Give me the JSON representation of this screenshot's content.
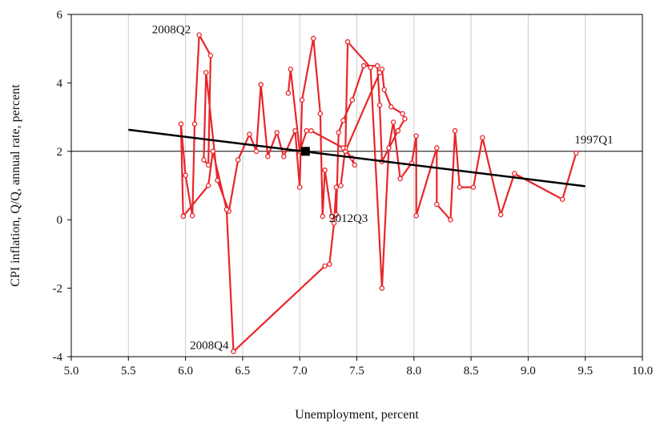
{
  "chart_data": {
    "type": "scatter",
    "title": "",
    "xlabel": "Unemployment, percent",
    "ylabel": "CPI inflation, Q/Q, annual rate, percent",
    "xlim": [
      5.0,
      10.0
    ],
    "ylim": [
      -4,
      6
    ],
    "xticks": [
      "5.0",
      "5.5",
      "6.0",
      "6.5",
      "7.0",
      "7.5",
      "8.0",
      "8.5",
      "9.0",
      "9.5",
      "10.0"
    ],
    "yticks": [
      "-4",
      "-2",
      "0",
      "2",
      "4",
      "6"
    ],
    "grid": "vertical",
    "colors": {
      "series": "#e8262a",
      "fit": "#000000",
      "grid": "#cccccc",
      "refline": "#000000"
    },
    "reference_line": {
      "y": 2
    },
    "series": [
      {
        "x": [
          9.42,
          9.3,
          8.88,
          8.76,
          8.6,
          8.52,
          8.4,
          8.36,
          8.32,
          8.2,
          8.2,
          8.02,
          8.02,
          7.98,
          7.88,
          7.82,
          7.78,
          7.72,
          7.62,
          7.42,
          7.4,
          7.7,
          7.72,
          7.74,
          7.8,
          7.9,
          7.92,
          7.86,
          7.72,
          7.7,
          7.68,
          7.56,
          7.46,
          7.38,
          7.34,
          7.32,
          7.28,
          7.22,
          7.2,
          7.18,
          7.12,
          7.02,
          7.0,
          6.96,
          6.86,
          6.8,
          6.72,
          6.66,
          6.62,
          6.56,
          6.46,
          6.38,
          6.28,
          6.18,
          6.16,
          6.2,
          6.22,
          6.12,
          6.08,
          6.06,
          6.0,
          5.96,
          5.98,
          6.2,
          6.24,
          6.36,
          6.42,
          7.22,
          7.26,
          7.3,
          7.32,
          7.36,
          7.4,
          7.48,
          7.46,
          7.38,
          7.1,
          7.06,
          7.0,
          6.92,
          6.9
        ],
        "y": [
          1.95,
          0.6,
          1.35,
          0.15,
          2.4,
          0.95,
          0.95,
          2.6,
          0.0,
          0.45,
          2.1,
          0.12,
          2.45,
          1.65,
          1.2,
          2.85,
          2.1,
          -2.0,
          4.45,
          5.2,
          2.0,
          4.3,
          4.4,
          3.8,
          3.3,
          3.1,
          2.95,
          2.6,
          1.7,
          3.35,
          4.5,
          4.5,
          3.5,
          2.9,
          2.55,
          0.15,
          0.1,
          1.45,
          0.1,
          3.1,
          5.3,
          3.5,
          0.95,
          2.6,
          1.85,
          2.55,
          1.85,
          3.95,
          2.0,
          2.5,
          1.75,
          0.25,
          1.15,
          4.3,
          1.75,
          1.6,
          4.8,
          5.4,
          2.8,
          0.12,
          1.3,
          2.8,
          0.1,
          1.0,
          2.0,
          0.3,
          -3.85,
          -1.35,
          -1.3,
          -0.1,
          0.95,
          1.0,
          2.1,
          1.6,
          1.8,
          2.1,
          2.6,
          2.6,
          2.0,
          4.4,
          3.7
        ]
      }
    ],
    "fit_line": {
      "x": [
        5.5,
        9.5
      ],
      "y": [
        2.63,
        0.98
      ]
    },
    "center_marker": {
      "x": 7.05,
      "y": 2.0
    },
    "annotations": [
      {
        "text": "2008Q2",
        "x": 6.06,
        "y": 5.4
      },
      {
        "text": "1997Q1",
        "x": 9.42,
        "y": 1.95
      },
      {
        "text": "2012Q3",
        "x": 7.3,
        "y": 0.1
      },
      {
        "text": "2008Q4",
        "x": 6.42,
        "y": -3.85
      }
    ]
  }
}
